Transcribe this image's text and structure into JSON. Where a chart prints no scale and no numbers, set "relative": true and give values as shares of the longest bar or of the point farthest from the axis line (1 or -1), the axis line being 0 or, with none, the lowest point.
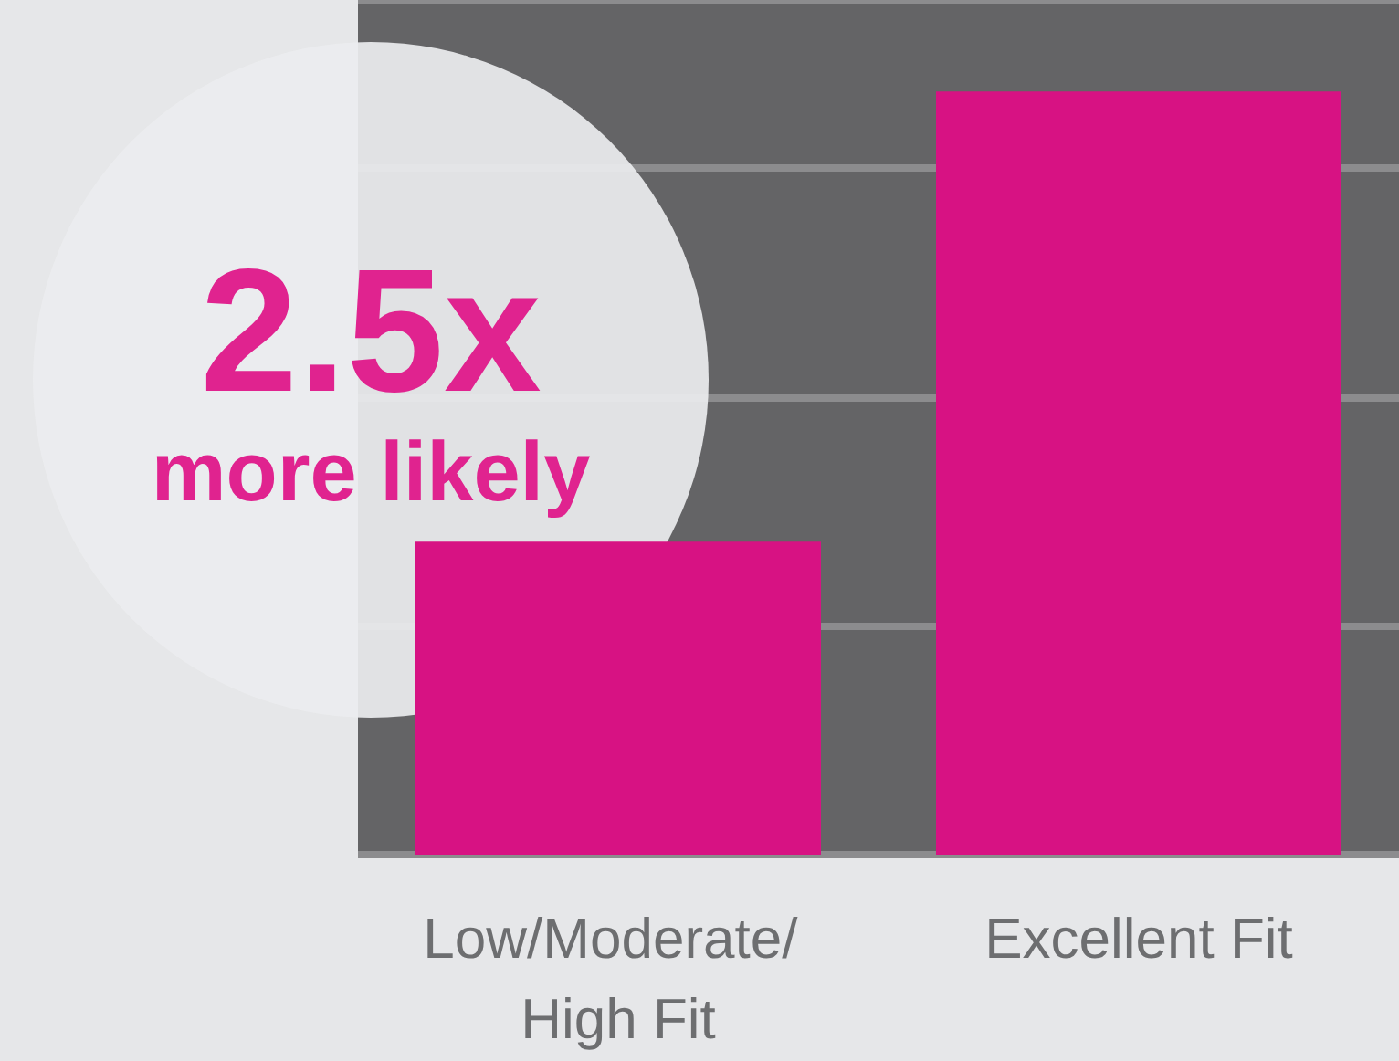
{
  "chart_data": {
    "type": "bar",
    "relative": true,
    "categories": [
      "Low/Moderate/ High Fit",
      "Excellent Fit"
    ],
    "values": [
      0.41,
      1
    ],
    "color": "#d71283",
    "grid": "y",
    "annotations": [
      "2.5x",
      "more likely"
    ]
  }
}
